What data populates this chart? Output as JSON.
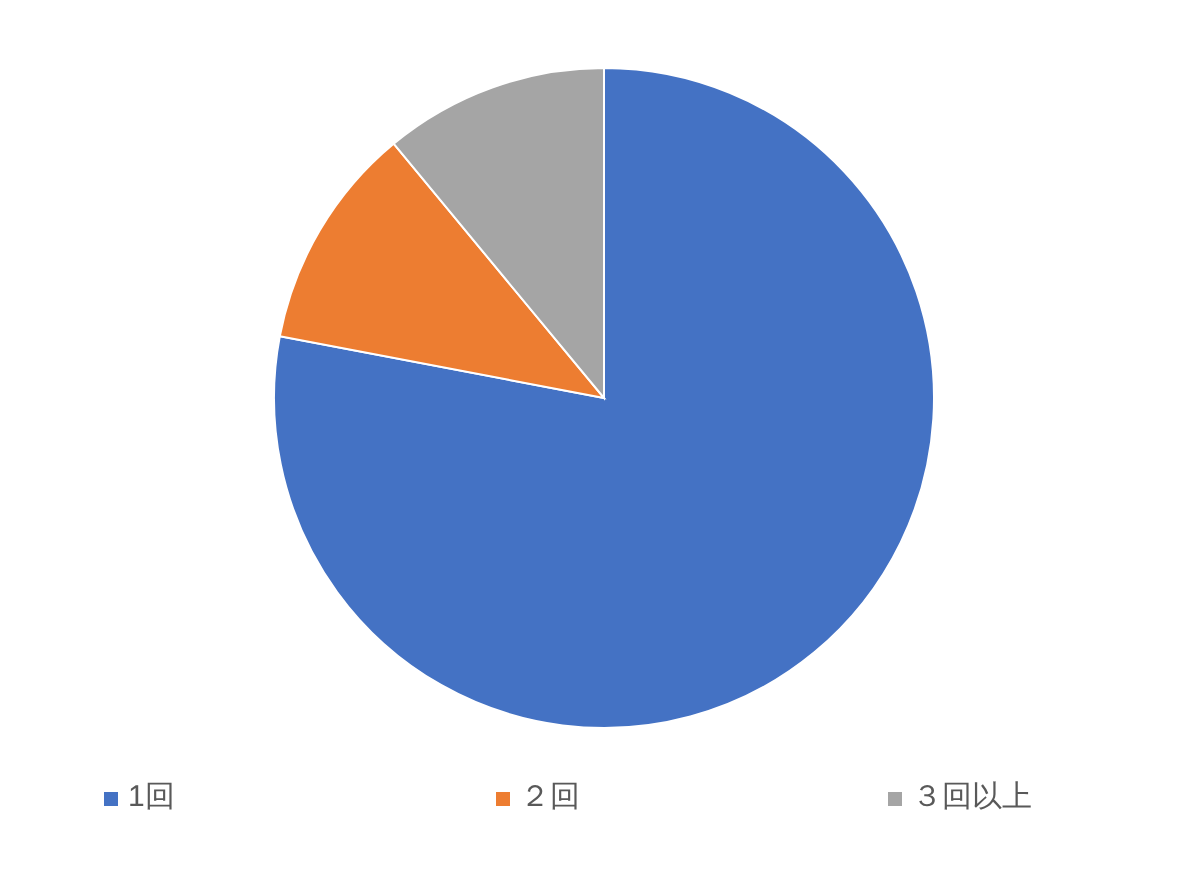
{
  "chart_data": {
    "type": "pie",
    "categories": [
      "1回",
      "２回",
      "３回以上"
    ],
    "values": [
      78,
      11,
      11
    ],
    "colors": [
      "#4472c4",
      "#ed7d31",
      "#a5a5a5"
    ],
    "legend": "bottom"
  }
}
